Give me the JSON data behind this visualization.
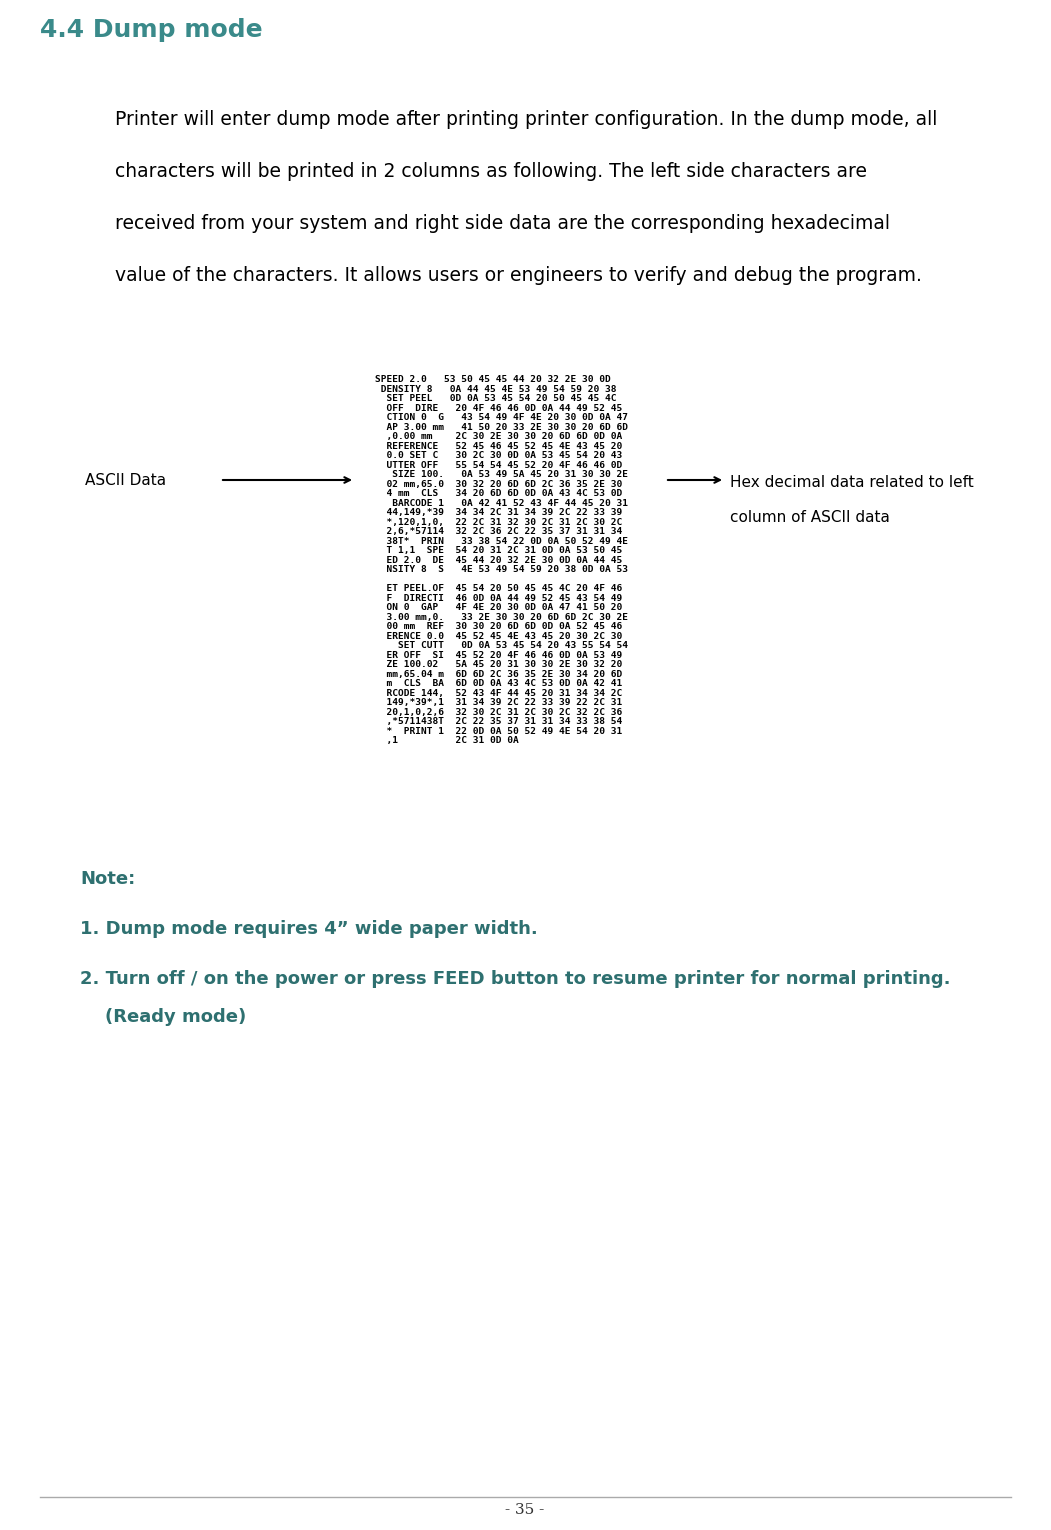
{
  "title": "4.4 Dump mode",
  "title_color": "#3a8a8a",
  "title_fontsize": 18,
  "body_lines": [
    "Printer will enter dump mode after printing printer configuration. In the dump mode, all",
    "characters will be printed in 2 columns as following. The left side characters are",
    "received from your system and right side data are the corresponding hexadecimal",
    "value of the characters. It allows users or engineers to verify and debug the program."
  ],
  "body_fontsize": 13.5,
  "body_color": "#000000",
  "dump_lines": [
    "SPEED 2.0   53 50 45 45 44 20 32 2E 30 0D",
    " DENSITY 8   0A 44 45 4E 53 49 54 59 20 38",
    "  SET PEEL   0D 0A 53 45 54 20 50 45 45 4C",
    "  OFF  DIRE   20 4F 46 46 0D 0A 44 49 52 45",
    "  CTION 0  G   43 54 49 4F 4E 20 30 0D 0A 47",
    "  AP 3.00 mm   41 50 20 33 2E 30 30 20 6D 6D",
    "  ,0.00 mm    2C 30 2E 30 30 20 6D 6D 0D 0A",
    "  REFERENCE   52 45 46 45 52 45 4E 43 45 20",
    "  0.0 SET C   30 2C 30 0D 0A 53 45 54 20 43",
    "  UTTER OFF   55 54 54 45 52 20 4F 46 46 0D",
    "   SIZE 100.   0A 53 49 5A 45 20 31 30 30 2E",
    "  02 mm,65.0  30 32 20 6D 6D 2C 36 35 2E 30",
    "  4 mm  CLS   34 20 6D 6D 0D 0A 43 4C 53 0D",
    "   BARCODE 1   0A 42 41 52 43 4F 44 45 20 31",
    "  44,149,*39  34 34 2C 31 34 39 2C 22 33 39",
    "  *,120,1,0,  22 2C 31 32 30 2C 31 2C 30 2C",
    "  2,6,*57114  32 2C 36 2C 22 35 37 31 31 34",
    "  38T*  PRIN   33 38 54 22 0D 0A 50 52 49 4E",
    "  T 1,1  SPE  54 20 31 2C 31 0D 0A 53 50 45",
    "  ED 2.0  DE  45 44 20 32 2E 30 0D 0A 44 45",
    "  NSITY 8  S   4E 53 49 54 59 20 38 0D 0A 53",
    "",
    "  ET PEEL.OF  45 54 20 50 45 45 4C 20 4F 46",
    "  F  DIRECTI  46 0D 0A 44 49 52 45 43 54 49",
    "  ON 0  GAP   4F 4E 20 30 0D 0A 47 41 50 20",
    "  3.00 mm,0.   33 2E 30 30 20 6D 6D 2C 30 2E",
    "  00 mm  REF  30 30 20 6D 6D 0D 0A 52 45 46",
    "  ERENCE 0.0  45 52 45 4E 43 45 20 30 2C 30",
    "    SET CUTT   0D 0A 53 45 54 20 43 55 54 54",
    "  ER OFF  SI  45 52 20 4F 46 46 0D 0A 53 49",
    "  ZE 100.02   5A 45 20 31 30 30 2E 30 32 20",
    "  mm,65.04 m  6D 6D 2C 36 35 2E 30 34 20 6D",
    "  m  CLS  BA  6D 0D 0A 43 4C 53 0D 0A 42 41",
    "  RCODE 144,  52 43 4F 44 45 20 31 34 34 2C",
    "  149,*39*,1  31 34 39 2C 22 33 39 22 2C 31",
    "  20,1,0,2,6  32 30 2C 31 2C 30 2C 32 2C 36",
    "  ,*5711438T  2C 22 35 37 31 31 34 33 38 54",
    "  *  PRINT 1  22 0D 0A 50 52 49 4E 54 20 31",
    "  ,1          2C 31 0D 0A"
  ],
  "dump_fontsize": 6.8,
  "dump_color": "#000000",
  "ascii_label": "ASCII Data",
  "ascii_label_fontsize": 11,
  "hex_label_line1": "Hex decimal data related to left",
  "hex_label_line2": "column of ASCII data",
  "hex_label_fontsize": 11,
  "note_title": "Note:",
  "note_line1": "1. Dump mode requires 4” wide paper width.",
  "note_line2": "2. Turn off / on the power or press FEED button to resume printer for normal printing.",
  "note_line2b": "    (Ready mode)",
  "note_color": "#2e7070",
  "note_fontsize": 13,
  "page_number": "- 35 -",
  "bg_color": "#ffffff"
}
